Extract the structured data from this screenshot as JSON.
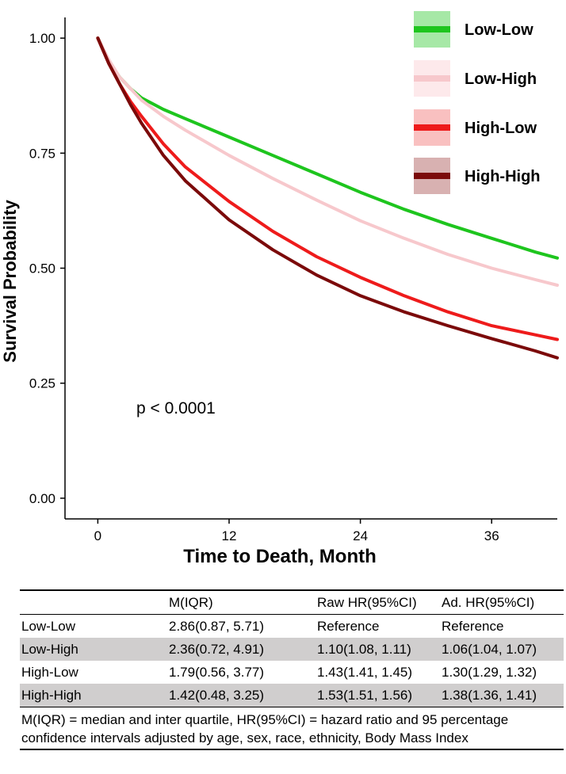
{
  "chart_data": {
    "type": "line",
    "title": "",
    "xlabel": "Time to Death, Month",
    "ylabel": "Survival Probability",
    "xlim": [
      -3,
      42
    ],
    "ylim": [
      -0.045,
      1.045
    ],
    "xticks": [
      0,
      12,
      24,
      36
    ],
    "xtick_labels": [
      "0",
      "12",
      "24",
      "36"
    ],
    "yticks": [
      0,
      0.25,
      0.5,
      0.75,
      1.0
    ],
    "ytick_labels": [
      "0.00",
      "0.25",
      "0.50",
      "0.75",
      "1.00"
    ],
    "grid": false,
    "legend_position": "top-right",
    "annotation": "p < 0.0001",
    "series": [
      {
        "name": "Low-Low",
        "color": "#1ec51e",
        "x": [
          0,
          1,
          2,
          3,
          4,
          6,
          8,
          12,
          16,
          20,
          24,
          28,
          32,
          36,
          40,
          42
        ],
        "y": [
          1.0,
          0.95,
          0.915,
          0.89,
          0.87,
          0.845,
          0.825,
          0.785,
          0.745,
          0.705,
          0.665,
          0.628,
          0.595,
          0.565,
          0.535,
          0.522
        ]
      },
      {
        "name": "Low-High",
        "color": "#f7c8cc",
        "x": [
          0,
          1,
          2,
          3,
          4,
          6,
          8,
          12,
          16,
          20,
          24,
          28,
          32,
          36,
          40,
          42
        ],
        "y": [
          1.0,
          0.953,
          0.915,
          0.89,
          0.865,
          0.83,
          0.8,
          0.745,
          0.695,
          0.648,
          0.603,
          0.565,
          0.53,
          0.5,
          0.475,
          0.463
        ]
      },
      {
        "name": "High-Low",
        "color": "#ee1b1b",
        "x": [
          0,
          1,
          2,
          3,
          4,
          6,
          8,
          12,
          16,
          20,
          24,
          28,
          32,
          36,
          40,
          42
        ],
        "y": [
          1.0,
          0.945,
          0.9,
          0.862,
          0.83,
          0.77,
          0.72,
          0.645,
          0.58,
          0.525,
          0.48,
          0.44,
          0.405,
          0.375,
          0.355,
          0.345
        ]
      },
      {
        "name": "High-High",
        "color": "#7b0a0a",
        "x": [
          0,
          1,
          2,
          3,
          4,
          6,
          8,
          12,
          16,
          20,
          24,
          28,
          32,
          36,
          40,
          42
        ],
        "y": [
          1.0,
          0.945,
          0.9,
          0.855,
          0.815,
          0.745,
          0.69,
          0.605,
          0.54,
          0.485,
          0.44,
          0.405,
          0.375,
          0.347,
          0.32,
          0.305
        ]
      }
    ],
    "legend": [
      {
        "name": "Low-Low",
        "color": "#1ec51e",
        "band": "#a6e8a6"
      },
      {
        "name": "Low-High",
        "color": "#f7c8cc",
        "band": "#fde9eb"
      },
      {
        "name": "High-Low",
        "color": "#ee1b1b",
        "band": "#f9c0c0"
      },
      {
        "name": "High-High",
        "color": "#7b0a0a",
        "band": "#d8b1b1"
      }
    ]
  },
  "table": {
    "headers": [
      "",
      "M(IQR)",
      "Raw HR(95%CI)",
      "Ad. HR(95%CI)"
    ],
    "rows": [
      {
        "group": "Low-Low",
        "m_iqr": "2.86(0.87, 5.71)",
        "raw_hr": "Reference",
        "adj_hr": "Reference"
      },
      {
        "group": "Low-High",
        "m_iqr": "2.36(0.72, 4.91)",
        "raw_hr": "1.10(1.08, 1.11)",
        "adj_hr": "1.06(1.04, 1.07)"
      },
      {
        "group": "High-Low",
        "m_iqr": "1.79(0.56, 3.77)",
        "raw_hr": "1.43(1.41, 1.45)",
        "adj_hr": "1.30(1.29, 1.32)"
      },
      {
        "group": "High-High",
        "m_iqr": "1.42(0.48, 3.25)",
        "raw_hr": "1.53(1.51, 1.56)",
        "adj_hr": "1.38(1.36, 1.41)"
      }
    ],
    "footnote": "M(IQR) = median and inter quartile, HR(95%CI) = hazard ratio and 95 percentage confidence intervals adjusted by age, sex, race, ethnicity, Body Mass Index"
  }
}
